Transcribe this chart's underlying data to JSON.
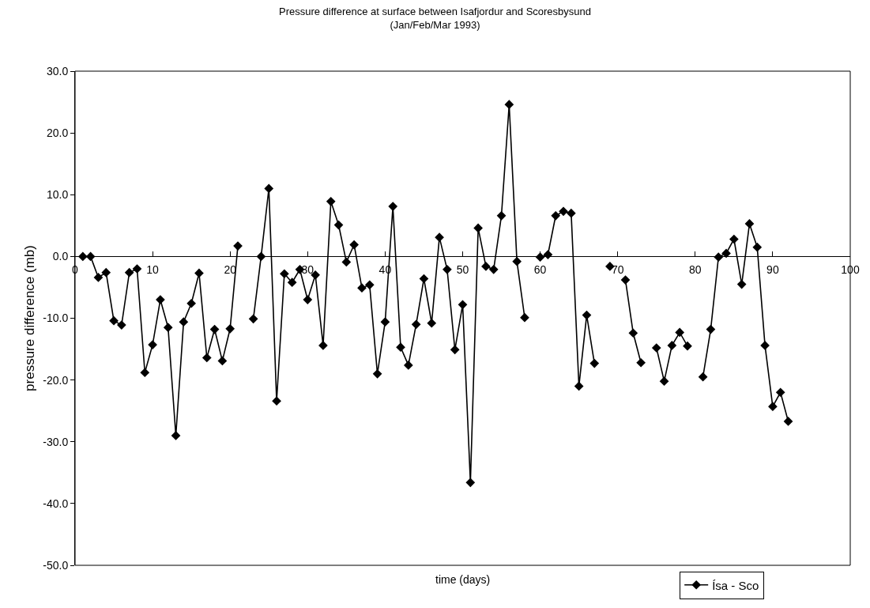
{
  "chart_data": {
    "type": "line",
    "title": "Pressure difference at surface between Isafjordur and Scoresbysund\n(Jan/Feb/Mar 1993)",
    "xlabel": "time (days)",
    "ylabel": "pressure difference (mb)",
    "x": [
      1,
      2,
      3,
      4,
      5,
      6,
      7,
      8,
      9,
      10,
      11,
      12,
      13,
      14,
      15,
      16,
      17,
      18,
      19,
      20,
      21,
      22,
      23,
      24,
      25,
      26,
      27,
      28,
      29,
      30,
      31,
      32,
      33,
      34,
      35,
      36,
      37,
      38,
      39,
      40,
      41,
      42,
      43,
      44,
      45,
      46,
      47,
      48,
      49,
      50,
      51,
      52,
      53,
      54,
      55,
      56,
      57,
      58,
      59,
      60,
      61,
      62,
      63,
      64,
      65,
      66,
      67,
      68,
      69,
      70,
      71,
      72,
      73,
      74,
      75,
      76,
      77,
      78,
      79,
      80,
      81,
      82,
      83,
      84,
      85,
      86,
      87,
      88,
      89,
      90,
      91,
      92
    ],
    "series": [
      {
        "name": "Ísa - Sco",
        "color": "#000000",
        "values": [
          0,
          0,
          -3.4,
          -2.6,
          -10.4,
          -11.1,
          -2.6,
          -2.0,
          -18.8,
          -14.3,
          -7.0,
          -11.5,
          -29.0,
          -10.6,
          -7.6,
          -2.7,
          -16.4,
          -11.8,
          -16.9,
          -11.7,
          1.7,
          null,
          -10.1,
          0,
          11.0,
          -23.4,
          -2.8,
          -4.2,
          -2.1,
          -7.0,
          -3.0,
          -14.4,
          8.9,
          5.1,
          -0.9,
          1.9,
          -5.1,
          -4.6,
          -19.0,
          -10.6,
          8.1,
          -14.7,
          -17.6,
          -11.0,
          -3.6,
          -10.8,
          3.1,
          -2.1,
          -15.1,
          -7.8,
          -36.6,
          4.6,
          -1.6,
          -2.1,
          6.6,
          24.6,
          -0.8,
          -9.9,
          null,
          -0.1,
          0.3,
          6.6,
          7.3,
          7.0,
          -21.0,
          -9.5,
          -17.3,
          null,
          -1.6,
          null,
          -3.8,
          -12.4,
          -17.2,
          null,
          -14.8,
          -20.2,
          -14.4,
          -12.3,
          -14.5,
          null,
          -19.5,
          -11.8,
          -0.1,
          0.5,
          2.8,
          -4.5,
          5.3,
          1.5,
          -14.4,
          -24.3,
          -22.0,
          -26.7
        ]
      }
    ],
    "xlim": [
      0,
      100
    ],
    "xticks": [
      0,
      10,
      20,
      30,
      40,
      50,
      60,
      70,
      80,
      90,
      100
    ],
    "ylim": [
      -50,
      30
    ],
    "yticks": [
      {
        "value": 30,
        "label": "30.0"
      },
      {
        "value": 20,
        "label": "20.0"
      },
      {
        "value": 10,
        "label": "10.0"
      },
      {
        "value": 0,
        "label": "0.0"
      },
      {
        "value": -10,
        "label": "-10.0"
      },
      {
        "value": -20,
        "label": "-20.0"
      },
      {
        "value": -30,
        "label": "-30.0"
      },
      {
        "value": -40,
        "label": "-40.0"
      },
      {
        "value": -50,
        "label": "-50.0"
      }
    ],
    "marker": "diamond",
    "line_style": "solid",
    "legend": "bottom right"
  }
}
